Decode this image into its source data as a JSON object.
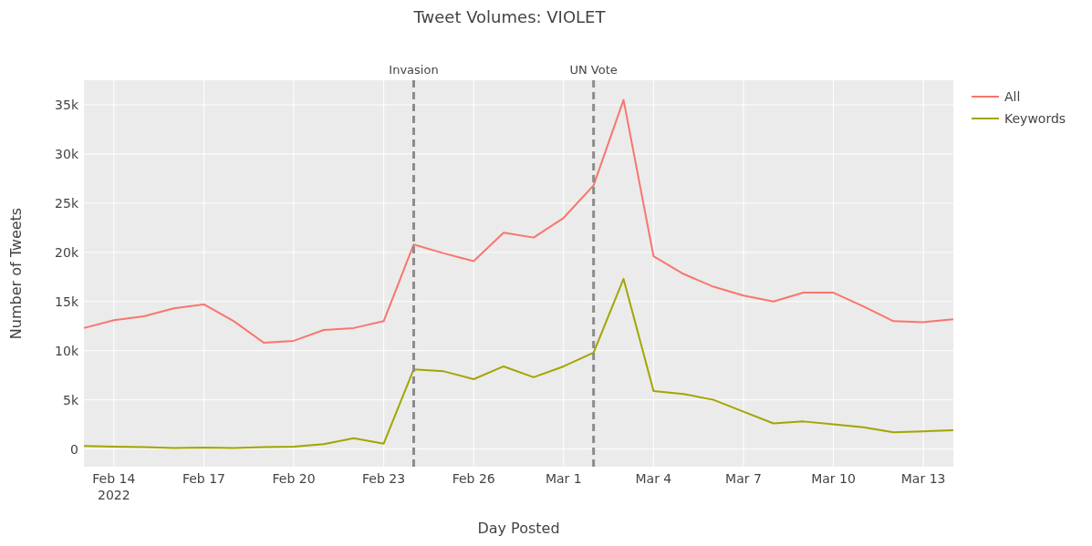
{
  "chart_data": {
    "type": "line",
    "title": "Tweet Volumes: VIOLET",
    "xlabel": "Day Posted",
    "ylabel": "Number of Tweets",
    "x": [
      "2022-02-13",
      "2022-02-14",
      "2022-02-15",
      "2022-02-16",
      "2022-02-17",
      "2022-02-18",
      "2022-02-19",
      "2022-02-20",
      "2022-02-21",
      "2022-02-22",
      "2022-02-23",
      "2022-02-24",
      "2022-02-25",
      "2022-02-26",
      "2022-02-27",
      "2022-02-28",
      "2022-03-01",
      "2022-03-02",
      "2022-03-03",
      "2022-03-04",
      "2022-03-05",
      "2022-03-06",
      "2022-03-07",
      "2022-03-08",
      "2022-03-09",
      "2022-03-10",
      "2022-03-11",
      "2022-03-12",
      "2022-03-13",
      "2022-03-14"
    ],
    "series": [
      {
        "name": "All",
        "color": "#f8766d",
        "values": [
          12300,
          13100,
          13500,
          14300,
          14700,
          13000,
          10800,
          11000,
          12100,
          12300,
          13000,
          20800,
          19900,
          19100,
          22000,
          21500,
          23500,
          26800,
          35500,
          19600,
          17800,
          16500,
          15600,
          15000,
          15900,
          15900,
          14500,
          13000,
          12900,
          13200
        ]
      },
      {
        "name": "Keywords",
        "color": "#a3a500",
        "values": [
          300,
          250,
          200,
          100,
          150,
          100,
          200,
          250,
          500,
          1100,
          550,
          8100,
          7900,
          7100,
          8400,
          7300,
          8400,
          9800,
          17300,
          5900,
          5600,
          5000,
          3800,
          2600,
          2800,
          2500,
          2200,
          1700,
          1800,
          1900
        ]
      }
    ],
    "xlim": [
      "2022-02-13",
      "2022-03-14"
    ],
    "xticks": [
      {
        "value": "2022-02-14",
        "label": "Feb 14\n2022"
      },
      {
        "value": "2022-02-17",
        "label": "Feb 17"
      },
      {
        "value": "2022-02-20",
        "label": "Feb 20"
      },
      {
        "value": "2022-02-23",
        "label": "Feb 23"
      },
      {
        "value": "2022-02-26",
        "label": "Feb 26"
      },
      {
        "value": "2022-03-01",
        "label": "Mar 1"
      },
      {
        "value": "2022-03-04",
        "label": "Mar 4"
      },
      {
        "value": "2022-03-07",
        "label": "Mar 7"
      },
      {
        "value": "2022-03-10",
        "label": "Mar 10"
      },
      {
        "value": "2022-03-13",
        "label": "Mar 13"
      }
    ],
    "ylim": [
      -1800,
      37500
    ],
    "yticks": [
      0,
      {
        "value": 5000,
        "label": "5k"
      },
      {
        "value": 10000,
        "label": "10k"
      },
      {
        "value": 15000,
        "label": "15k"
      },
      {
        "value": 20000,
        "label": "20k"
      },
      {
        "value": 25000,
        "label": "25k"
      },
      {
        "value": 30000,
        "label": "30k"
      },
      {
        "value": 35000,
        "label": "35k"
      }
    ],
    "ref_lines": [
      {
        "axis": "x",
        "value": "2022-02-24",
        "label": "Invasion",
        "color": "#8c8c8c",
        "line_style": "dashed"
      },
      {
        "axis": "x",
        "value": "2022-03-02",
        "label": "UN Vote",
        "color": "#8c8c8c",
        "line_style": "dashed"
      }
    ],
    "grid": true,
    "legend": "right",
    "line_style": "solid",
    "marker": "none"
  }
}
